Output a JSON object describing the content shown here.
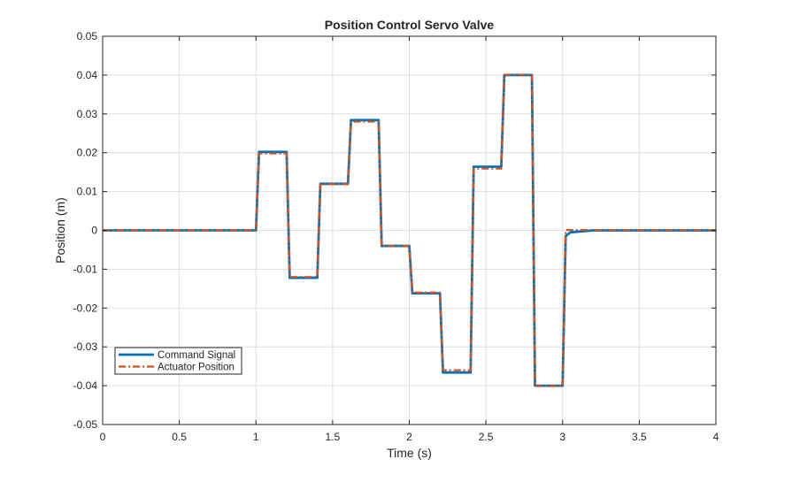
{
  "chart_data": {
    "type": "line",
    "title": "Position Control Servo Valve",
    "xlabel": "Time (s)",
    "ylabel": "Position (m)",
    "xlim": [
      0,
      4
    ],
    "ylim": [
      -0.05,
      0.05
    ],
    "grid": true,
    "legend_location": "bottom-left",
    "x_ticks": [
      0,
      0.5,
      1,
      1.5,
      2,
      2.5,
      3,
      3.5,
      4
    ],
    "x_tick_labels": [
      "0",
      "0.5",
      "1",
      "1.5",
      "2",
      "2.5",
      "3",
      "3.5",
      "4"
    ],
    "y_ticks": [
      0.05,
      0.04,
      0.03,
      0.02,
      0.01,
      0,
      -0.01,
      -0.02,
      -0.03,
      -0.04,
      -0.05
    ],
    "y_tick_labels": [
      "0.05",
      "0.04",
      "0.03",
      "0.02",
      "0.01",
      "0",
      "-0.01",
      "-0.02",
      "-0.03",
      "-0.04",
      "-0.05"
    ],
    "series": [
      {
        "name": "Command Signal",
        "color": "#0072BD",
        "style": "solid",
        "x": [
          0,
          1.0,
          1.02,
          1.2,
          1.22,
          1.4,
          1.42,
          1.6,
          1.62,
          1.8,
          1.82,
          2.0,
          2.02,
          2.2,
          2.22,
          2.4,
          2.42,
          2.6,
          2.62,
          2.8,
          2.82,
          3.0,
          3.02,
          3.05,
          3.2,
          4.0
        ],
        "y": [
          0,
          0,
          0.0202,
          0.0202,
          -0.0122,
          -0.0122,
          0.012,
          0.012,
          0.0284,
          0.0284,
          -0.004,
          -0.004,
          -0.0162,
          -0.0162,
          -0.0366,
          -0.0366,
          0.0164,
          0.0164,
          0.04,
          0.04,
          -0.04,
          -0.04,
          -0.0015,
          -0.0005,
          0,
          0
        ]
      },
      {
        "name": "Actuator Position",
        "color": "#D95319",
        "style": "dashdot",
        "x": [
          0,
          1.0,
          1.02,
          1.2,
          1.22,
          1.4,
          1.42,
          1.6,
          1.62,
          1.8,
          1.82,
          2.0,
          2.02,
          2.2,
          2.22,
          2.4,
          2.42,
          2.6,
          2.62,
          2.8,
          2.82,
          3.0,
          3.02,
          4.0
        ],
        "y": [
          0,
          0,
          0.0198,
          0.0198,
          -0.012,
          -0.012,
          0.0119,
          0.0119,
          0.028,
          0.028,
          -0.004,
          -0.004,
          -0.016,
          -0.016,
          -0.036,
          -0.036,
          0.0159,
          0.0159,
          0.0401,
          0.0401,
          -0.0401,
          -0.0401,
          0.0001,
          0.0001
        ]
      }
    ]
  }
}
